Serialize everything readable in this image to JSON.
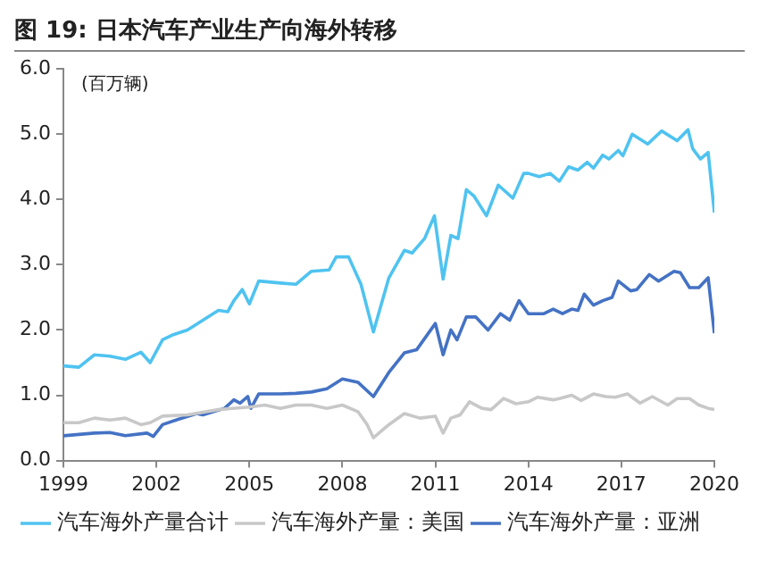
{
  "chart_data": {
    "type": "line",
    "title": "图 19:  日本汽车产业生产向海外转移",
    "ylabel": "(百万辆)",
    "xlim": [
      1999,
      2020
    ],
    "xticks": [
      1999,
      2002,
      2005,
      2008,
      2011,
      2014,
      2017,
      2020
    ],
    "ylim": [
      0,
      6
    ],
    "yticks": [
      {
        "value": 0,
        "label": "0.0"
      },
      {
        "value": 1,
        "label": "1.0"
      },
      {
        "value": 2,
        "label": "2.0"
      },
      {
        "value": 3,
        "label": "3.0"
      },
      {
        "value": 4,
        "label": "4.0"
      },
      {
        "value": 5,
        "label": "5.0"
      },
      {
        "value": 6,
        "label": "6.0"
      }
    ],
    "grid": false,
    "legend": "bottom",
    "marker": "none",
    "line_style": "solid",
    "series": [
      {
        "name": "汽车海外产量合计",
        "color": "#4fc3f0",
        "x": [
          1999,
          1999.5,
          2000,
          2000.5,
          2001,
          2001.5,
          2001.8,
          2002.2,
          2002.5,
          2003,
          2003.5,
          2004,
          2004.3,
          2004.5,
          2004.77,
          2005,
          2005.3,
          2006,
          2006.5,
          2007,
          2007.57,
          2007.8,
          2008.2,
          2008.6,
          2009,
          2009.5,
          2010,
          2010.25,
          2010.65,
          2010.97,
          2011.25,
          2011.5,
          2011.73,
          2012,
          2012.25,
          2012.65,
          2013.03,
          2013.5,
          2013.85,
          2014,
          2014.35,
          2014.7,
          2015,
          2015.3,
          2015.6,
          2015.9,
          2016.1,
          2016.4,
          2016.6,
          2016.9,
          2017.05,
          2017.35,
          2017.85,
          2018.3,
          2018.8,
          2019.15,
          2019.3,
          2019.55,
          2019.8,
          2020
        ],
        "values": [
          1.45,
          1.43,
          1.62,
          1.6,
          1.55,
          1.66,
          1.5,
          1.85,
          1.92,
          2.0,
          2.15,
          2.3,
          2.28,
          2.45,
          2.62,
          2.4,
          2.75,
          2.72,
          2.7,
          2.9,
          2.92,
          3.12,
          3.12,
          2.7,
          1.97,
          2.8,
          3.22,
          3.18,
          3.4,
          3.75,
          2.78,
          3.45,
          3.4,
          4.15,
          4.05,
          3.75,
          4.22,
          4.02,
          4.4,
          4.4,
          4.35,
          4.4,
          4.28,
          4.5,
          4.45,
          4.57,
          4.48,
          4.68,
          4.62,
          4.75,
          4.67,
          5.0,
          4.85,
          5.05,
          4.9,
          5.07,
          4.78,
          4.62,
          4.72,
          3.8
        ]
      },
      {
        "name": "汽车海外产量：美国",
        "color": "#c8c8c8",
        "x": [
          1999,
          1999.5,
          2000,
          2000.5,
          2001,
          2001.5,
          2001.8,
          2002.2,
          2003,
          2004,
          2005,
          2005.5,
          2006,
          2006.5,
          2007,
          2007.5,
          2008,
          2008.5,
          2008.8,
          2009,
          2009.5,
          2010,
          2010.5,
          2011,
          2011.25,
          2011.5,
          2011.8,
          2012.1,
          2012.5,
          2012.8,
          2013.2,
          2013.6,
          2014,
          2014.3,
          2014.8,
          2015,
          2015.4,
          2015.7,
          2016.1,
          2016.5,
          2016.8,
          2017.2,
          2017.6,
          2018,
          2018.5,
          2018.8,
          2019.2,
          2019.5,
          2019.8,
          2020
        ],
        "values": [
          0.58,
          0.58,
          0.65,
          0.62,
          0.65,
          0.55,
          0.58,
          0.68,
          0.7,
          0.78,
          0.82,
          0.85,
          0.8,
          0.85,
          0.85,
          0.8,
          0.85,
          0.75,
          0.55,
          0.35,
          0.55,
          0.72,
          0.65,
          0.68,
          0.42,
          0.65,
          0.7,
          0.9,
          0.8,
          0.78,
          0.95,
          0.87,
          0.9,
          0.97,
          0.93,
          0.95,
          1.0,
          0.92,
          1.02,
          0.98,
          0.97,
          1.02,
          0.88,
          0.98,
          0.85,
          0.95,
          0.95,
          0.85,
          0.8,
          0.78
        ]
      },
      {
        "name": "汽车海外产量：亚洲",
        "color": "#4472c4",
        "x": [
          1999,
          2000,
          2000.5,
          2001,
          2001.7,
          2001.9,
          2002.2,
          2002.7,
          2003.3,
          2003.5,
          2004.2,
          2004.5,
          2004.7,
          2004.95,
          2005.05,
          2005.3,
          2006,
          2006.5,
          2007,
          2007.5,
          2008,
          2008.5,
          2009,
          2009.5,
          2010,
          2010.4,
          2011,
          2011.25,
          2011.5,
          2011.7,
          2012,
          2012.3,
          2012.7,
          2013.1,
          2013.4,
          2013.7,
          2014,
          2014.5,
          2014.8,
          2015.1,
          2015.4,
          2015.6,
          2015.8,
          2016.1,
          2016.4,
          2016.7,
          2016.9,
          2017.3,
          2017.5,
          2017.9,
          2018.2,
          2018.7,
          2018.9,
          2019.2,
          2019.5,
          2019.8,
          2020
        ],
        "values": [
          0.38,
          0.42,
          0.43,
          0.38,
          0.42,
          0.37,
          0.55,
          0.63,
          0.72,
          0.7,
          0.8,
          0.93,
          0.88,
          0.98,
          0.8,
          1.02,
          1.02,
          1.03,
          1.05,
          1.1,
          1.25,
          1.2,
          0.98,
          1.35,
          1.65,
          1.7,
          2.1,
          1.62,
          2.0,
          1.85,
          2.2,
          2.2,
          2.0,
          2.25,
          2.15,
          2.45,
          2.25,
          2.25,
          2.32,
          2.25,
          2.32,
          2.3,
          2.55,
          2.38,
          2.45,
          2.5,
          2.75,
          2.6,
          2.62,
          2.85,
          2.75,
          2.9,
          2.88,
          2.65,
          2.65,
          2.8,
          1.95
        ]
      }
    ]
  }
}
